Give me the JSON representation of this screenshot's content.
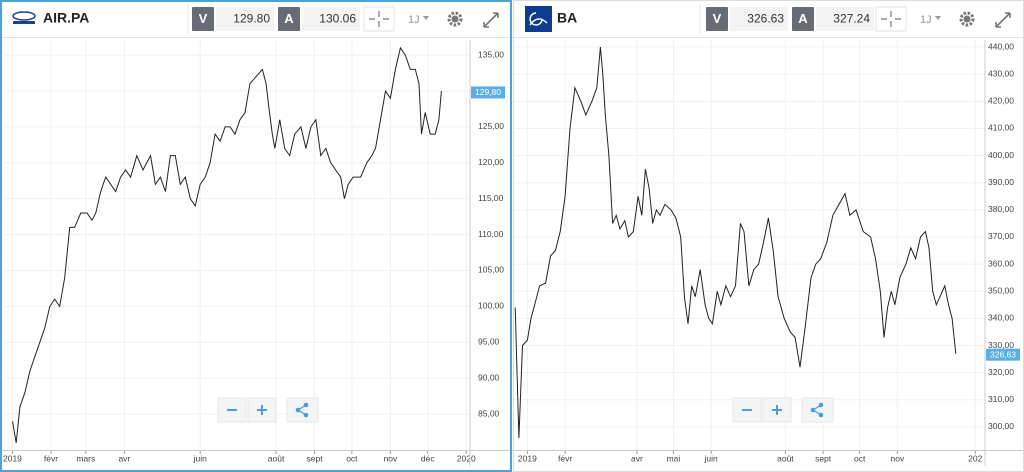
{
  "panels": [
    {
      "symbol": "AIR.PA",
      "bid_label": "V",
      "bid": "129.80",
      "ask_label": "A",
      "ask": "130.06",
      "interval": "1J",
      "chart": {
        "type": "line",
        "color": "#222222",
        "x": [
          0,
          3,
          6,
          10,
          14,
          18,
          22,
          26,
          30,
          34,
          38,
          42,
          46,
          50,
          55,
          60,
          64,
          67,
          71,
          75,
          79,
          83,
          87,
          91,
          95,
          100,
          105,
          111,
          115,
          119,
          123,
          127,
          131,
          135,
          139,
          143,
          147,
          151,
          155,
          159,
          163,
          167,
          171,
          175,
          179,
          183,
          187,
          191,
          196,
          201,
          204,
          206,
          209,
          211,
          215,
          219,
          223,
          227,
          232,
          236,
          240,
          244,
          248,
          252,
          256,
          260,
          264,
          267,
          270,
          274,
          280,
          285,
          289,
          292,
          296,
          300,
          304,
          308,
          312,
          316,
          320,
          324,
          327,
          329,
          332,
          336,
          340,
          343,
          345
        ],
        "values": [
          84,
          81,
          86,
          88,
          91,
          93,
          95,
          97,
          100,
          101,
          100,
          104,
          111,
          111,
          113,
          113,
          112,
          113,
          116,
          118,
          117,
          116,
          118,
          119,
          118,
          121,
          119,
          121,
          117,
          118,
          116,
          121,
          121,
          117,
          118,
          115,
          114,
          117,
          118,
          120,
          124,
          123,
          125,
          125,
          124,
          126,
          127,
          131,
          132,
          133,
          131,
          128,
          124,
          122,
          126,
          122,
          121,
          124,
          125,
          122,
          125,
          126,
          121,
          122,
          120,
          119,
          118,
          115,
          117,
          118,
          118,
          120,
          121,
          122,
          126,
          130,
          129,
          133,
          136,
          135,
          133,
          133,
          131,
          124,
          127,
          124,
          124,
          126,
          130
        ],
        "xlim": [
          -6,
          368
        ],
        "ylim": [
          80,
          137.1
        ],
        "xticks": [
          {
            "value": 0,
            "label": "2019"
          },
          {
            "value": 31,
            "label": "févr"
          },
          {
            "value": 59,
            "label": "mars"
          },
          {
            "value": 90,
            "label": "avr"
          },
          {
            "value": 151,
            "label": "juin"
          },
          {
            "value": 212,
            "label": "août"
          },
          {
            "value": 243,
            "label": "sept"
          },
          {
            "value": 273,
            "label": "oct"
          },
          {
            "value": 304,
            "label": "nov"
          },
          {
            "value": 334,
            "label": "déc"
          },
          {
            "value": 365,
            "label": "2020"
          }
        ],
        "yticks": [
          {
            "value": 85,
            "label": "85,00"
          },
          {
            "value": 90,
            "label": "90,00"
          },
          {
            "value": 95,
            "label": "95,00"
          },
          {
            "value": 100,
            "label": "100,00"
          },
          {
            "value": 105,
            "label": "105,00"
          },
          {
            "value": 110,
            "label": "110,00"
          },
          {
            "value": 115,
            "label": "115,00"
          },
          {
            "value": 120,
            "label": "120,00"
          },
          {
            "value": 125,
            "label": "125,00"
          },
          {
            "value": 130,
            "label": "130,00"
          },
          {
            "value": 135,
            "label": "135,00"
          }
        ],
        "last_value": {
          "value": 129.8,
          "label": "129,80"
        }
      }
    },
    {
      "symbol": "BA",
      "bid_label": "V",
      "bid": "326.63",
      "ask_label": "A",
      "ask": "327.24",
      "interval": "1J",
      "chart": {
        "type": "line",
        "color": "#222222",
        "x": [
          -10,
          -7,
          -4,
          0,
          3,
          6,
          10,
          15,
          19,
          23,
          27,
          31,
          35,
          39,
          44,
          48,
          53,
          57,
          60,
          62,
          64,
          67,
          70,
          73,
          76,
          80,
          83,
          87,
          91,
          94,
          97,
          100,
          103,
          106,
          109,
          113,
          118,
          122,
          126,
          129,
          132,
          135,
          138,
          142,
          146,
          149,
          152,
          156,
          159,
          163,
          167,
          171,
          175,
          178,
          182,
          186,
          190,
          194,
          198,
          202,
          206,
          211,
          216,
          220,
          224,
          228,
          233,
          237,
          241,
          246,
          251,
          256,
          261,
          265,
          270,
          276,
          282,
          286,
          290,
          293,
          296,
          299,
          302,
          306,
          311,
          315,
          319,
          323,
          327,
          330,
          333,
          336,
          339,
          343,
          346,
          349,
          352
        ],
        "values": [
          344,
          296,
          330,
          332,
          340,
          345,
          352,
          353,
          363,
          365,
          372,
          385,
          410,
          425,
          420,
          415,
          420,
          425,
          440,
          430,
          415,
          400,
          375,
          378,
          373,
          376,
          370,
          372,
          385,
          378,
          395,
          388,
          375,
          380,
          378,
          382,
          380,
          377,
          370,
          348,
          338,
          352,
          348,
          358,
          345,
          340,
          338,
          350,
          345,
          352,
          348,
          352,
          375,
          372,
          352,
          358,
          360,
          368,
          377,
          365,
          348,
          340,
          335,
          333,
          322,
          336,
          355,
          360,
          362,
          368,
          378,
          382,
          386,
          378,
          380,
          372,
          370,
          362,
          350,
          333,
          344,
          350,
          345,
          355,
          360,
          366,
          362,
          370,
          372,
          366,
          350,
          345,
          348,
          352,
          345,
          340,
          327
        ],
        "xlim": [
          -11,
          376
        ],
        "ylim": [
          291.5,
          442.6
        ],
        "xticks": [
          {
            "value": 0,
            "label": "2019"
          },
          {
            "value": 31,
            "label": "févr"
          },
          {
            "value": 90,
            "label": "avr"
          },
          {
            "value": 120,
            "label": "mai"
          },
          {
            "value": 151,
            "label": "juin"
          },
          {
            "value": 212,
            "label": "août"
          },
          {
            "value": 243,
            "label": "sept"
          },
          {
            "value": 273,
            "label": "oct"
          },
          {
            "value": 304,
            "label": "nov"
          },
          {
            "value": 368,
            "label": "202"
          }
        ],
        "yticks": [
          {
            "value": 300,
            "label": "300,00"
          },
          {
            "value": 310,
            "label": "310,00"
          },
          {
            "value": 320,
            "label": "320,00"
          },
          {
            "value": 330,
            "label": "330,00"
          },
          {
            "value": 340,
            "label": "340,00"
          },
          {
            "value": 350,
            "label": "350,00"
          },
          {
            "value": 360,
            "label": "360,00"
          },
          {
            "value": 370,
            "label": "370,00"
          },
          {
            "value": 380,
            "label": "380,00"
          },
          {
            "value": 390,
            "label": "390,00"
          },
          {
            "value": 400,
            "label": "400,00"
          },
          {
            "value": 410,
            "label": "410,00"
          },
          {
            "value": 420,
            "label": "420,00"
          },
          {
            "value": 430,
            "label": "430,00"
          },
          {
            "value": 440,
            "label": "440,00"
          }
        ],
        "last_value": {
          "value": 326.63,
          "label": "326,63"
        }
      }
    }
  ]
}
